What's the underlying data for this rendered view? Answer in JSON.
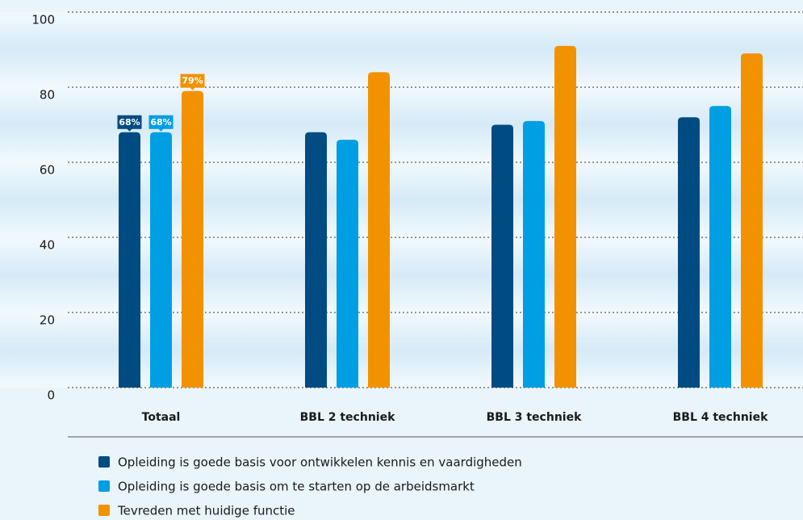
{
  "chart_data": {
    "type": "bar",
    "categories": [
      "Totaal",
      "BBL 2 techniek",
      "BBL 3 techniek",
      "BBL 4 techniek"
    ],
    "series": [
      {
        "name": "Opleiding is goede basis voor ontwikkelen kennis en vaardigheden",
        "color": "#004b82",
        "values": [
          68,
          68,
          70,
          72
        ],
        "value_labels": [
          "68%",
          null,
          null,
          null
        ]
      },
      {
        "name": "Opleiding is goede basis om te starten op de arbeidsmarkt",
        "color": "#009fe3",
        "values": [
          68,
          66,
          71,
          75
        ],
        "value_labels": [
          "68%",
          null,
          null,
          null
        ]
      },
      {
        "name": "Tevreden met huidige functie",
        "color": "#f39200",
        "values": [
          79,
          84,
          91,
          89
        ],
        "value_labels": [
          "79%",
          null,
          null,
          null
        ]
      }
    ],
    "ylim": [
      0,
      100
    ],
    "yticks": [
      0,
      20,
      40,
      60,
      80,
      100
    ],
    "grid": true
  }
}
